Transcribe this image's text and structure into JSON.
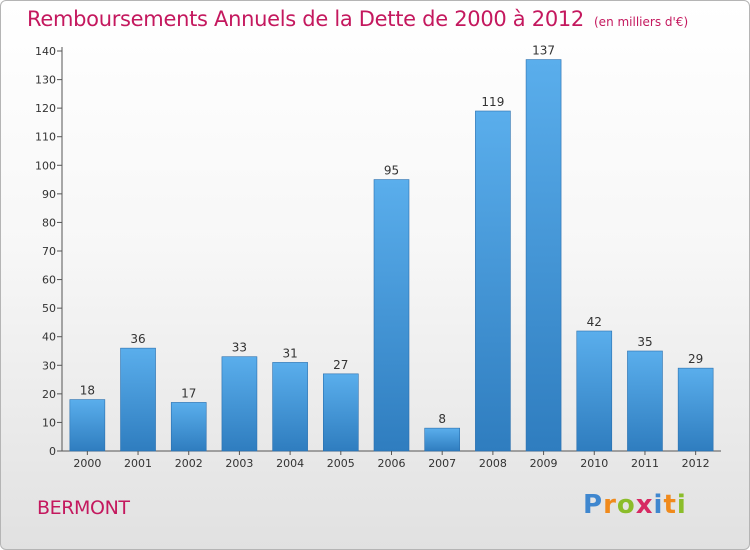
{
  "header": {
    "title": "Remboursements Annuels de la Dette de 2000 à 2012",
    "unit": "(en milliers d'€)"
  },
  "footer": {
    "commune": "BERMONT",
    "brand_letters": [
      {
        "ch": "P",
        "color": "#3f87cf"
      },
      {
        "ch": "r",
        "color": "#f08a1c"
      },
      {
        "ch": "o",
        "color": "#8bbd2a"
      },
      {
        "ch": "x",
        "color": "#d72a62"
      },
      {
        "ch": "i",
        "color": "#3f87cf"
      },
      {
        "ch": "t",
        "color": "#f08a1c"
      },
      {
        "ch": "i",
        "color": "#8bbd2a"
      }
    ]
  },
  "colors": {
    "title": "#c4185e",
    "bar_light": "#5aaeec",
    "bar_dark": "#2f7dbf"
  },
  "chart_data": {
    "type": "bar",
    "title": "Remboursements Annuels de la Dette de 2000 à 2012",
    "xlabel": "",
    "ylabel": "",
    "categories": [
      "2000",
      "2001",
      "2002",
      "2003",
      "2004",
      "2005",
      "2006",
      "2007",
      "2008",
      "2009",
      "2010",
      "2011",
      "2012"
    ],
    "values": [
      18,
      36,
      17,
      33,
      31,
      27,
      95,
      8,
      119,
      137,
      42,
      35,
      29
    ],
    "ylim": [
      0,
      140
    ],
    "yticks": [
      0,
      10,
      20,
      30,
      40,
      50,
      60,
      70,
      80,
      90,
      100,
      110,
      120,
      130,
      140
    ],
    "grid": false,
    "data_labels": true
  }
}
